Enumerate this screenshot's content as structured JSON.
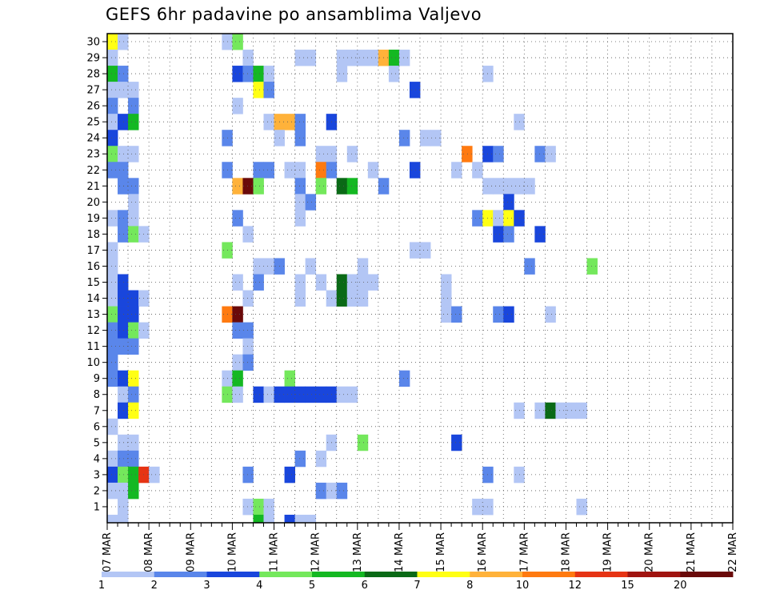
{
  "chart_data": {
    "type": "heatmap",
    "title": "GEFS 6hr padavine po ansamblima Valjevo",
    "xlabel": "",
    "ylabel": "",
    "y_ticks": [
      "1",
      "2",
      "3",
      "4",
      "5",
      "6",
      "7",
      "8",
      "9",
      "10",
      "11",
      "12",
      "13",
      "14",
      "15",
      "16",
      "17",
      "18",
      "19",
      "20",
      "21",
      "22",
      "23",
      "24",
      "25",
      "26",
      "27",
      "28",
      "29",
      "30"
    ],
    "ylim": [
      0,
      30
    ],
    "x_ticks": [
      "07 MAR",
      "08 MAR",
      "09 MAR",
      "10 MAR",
      "11 MAR",
      "12 MAR",
      "13 MAR",
      "14 MAR",
      "15 MAR",
      "16 MAR",
      "17 MAR",
      "18 MAR",
      "19 MAR",
      "20 MAR",
      "21 MAR",
      "22 MAR"
    ],
    "x_steps_per_day": 4,
    "grid": true,
    "colorbar": {
      "labels": [
        "1",
        "2",
        "3",
        "4",
        "5",
        "6",
        "7",
        "8",
        "10",
        "12",
        "15",
        "20"
      ],
      "colors": [
        "#b3c6f5",
        "#5a86ea",
        "#1946dc",
        "#74e85c",
        "#14b822",
        "#0a6a16",
        "#ffff14",
        "#ffb23a",
        "#ff7a10",
        "#e63414",
        "#a01410",
        "#6a0a0a"
      ]
    },
    "cells": [
      [
        0,
        30,
        6
      ],
      [
        1,
        30,
        0
      ],
      [
        11,
        30,
        0
      ],
      [
        12,
        30,
        3
      ],
      [
        0,
        29,
        0
      ],
      [
        13,
        29,
        0
      ],
      [
        18,
        29,
        0
      ],
      [
        19,
        29,
        0
      ],
      [
        22,
        29,
        0
      ],
      [
        23,
        29,
        0
      ],
      [
        24,
        29,
        0
      ],
      [
        25,
        29,
        0
      ],
      [
        26,
        29,
        7
      ],
      [
        27,
        29,
        4
      ],
      [
        28,
        29,
        0
      ],
      [
        0,
        28,
        4
      ],
      [
        1,
        28,
        1
      ],
      [
        12,
        28,
        2
      ],
      [
        13,
        28,
        1
      ],
      [
        14,
        28,
        4
      ],
      [
        15,
        28,
        0
      ],
      [
        22,
        28,
        0
      ],
      [
        27,
        28,
        0
      ],
      [
        36,
        28,
        0
      ],
      [
        0,
        27,
        0
      ],
      [
        1,
        27,
        0
      ],
      [
        2,
        27,
        0
      ],
      [
        14,
        27,
        6
      ],
      [
        15,
        27,
        1
      ],
      [
        29,
        27,
        2
      ],
      [
        0,
        26,
        1
      ],
      [
        2,
        26,
        1
      ],
      [
        12,
        26,
        0
      ],
      [
        0,
        25,
        0
      ],
      [
        1,
        25,
        2
      ],
      [
        2,
        25,
        4
      ],
      [
        15,
        25,
        0
      ],
      [
        16,
        25,
        7
      ],
      [
        17,
        25,
        7
      ],
      [
        18,
        25,
        1
      ],
      [
        21,
        25,
        2
      ],
      [
        39,
        25,
        0
      ],
      [
        0,
        24,
        2
      ],
      [
        11,
        24,
        1
      ],
      [
        16,
        24,
        0
      ],
      [
        18,
        24,
        1
      ],
      [
        28,
        24,
        1
      ],
      [
        30,
        24,
        0
      ],
      [
        31,
        24,
        0
      ],
      [
        0,
        23,
        3
      ],
      [
        1,
        23,
        0
      ],
      [
        2,
        23,
        0
      ],
      [
        20,
        23,
        0
      ],
      [
        21,
        23,
        0
      ],
      [
        23,
        23,
        0
      ],
      [
        34,
        23,
        8
      ],
      [
        36,
        23,
        2
      ],
      [
        37,
        23,
        1
      ],
      [
        41,
        23,
        1
      ],
      [
        42,
        23,
        0
      ],
      [
        0,
        22,
        1
      ],
      [
        1,
        22,
        1
      ],
      [
        11,
        22,
        1
      ],
      [
        14,
        22,
        1
      ],
      [
        15,
        22,
        1
      ],
      [
        17,
        22,
        0
      ],
      [
        18,
        22,
        0
      ],
      [
        20,
        22,
        8
      ],
      [
        21,
        22,
        1
      ],
      [
        25,
        22,
        0
      ],
      [
        29,
        22,
        2
      ],
      [
        33,
        22,
        0
      ],
      [
        35,
        22,
        0
      ],
      [
        1,
        21,
        1
      ],
      [
        2,
        21,
        1
      ],
      [
        12,
        21,
        7
      ],
      [
        13,
        21,
        11
      ],
      [
        14,
        21,
        3
      ],
      [
        18,
        21,
        1
      ],
      [
        20,
        21,
        3
      ],
      [
        22,
        21,
        5
      ],
      [
        23,
        21,
        4
      ],
      [
        26,
        21,
        1
      ],
      [
        36,
        21,
        0
      ],
      [
        37,
        21,
        0
      ],
      [
        38,
        21,
        0
      ],
      [
        39,
        21,
        0
      ],
      [
        40,
        21,
        0
      ],
      [
        2,
        20,
        0
      ],
      [
        18,
        20,
        0
      ],
      [
        19,
        20,
        1
      ],
      [
        38,
        20,
        2
      ],
      [
        0,
        19,
        0
      ],
      [
        1,
        19,
        1
      ],
      [
        2,
        19,
        0
      ],
      [
        18,
        19,
        0
      ],
      [
        12,
        19,
        1
      ],
      [
        35,
        19,
        1
      ],
      [
        36,
        19,
        6
      ],
      [
        37,
        19,
        0
      ],
      [
        38,
        19,
        6
      ],
      [
        39,
        19,
        2
      ],
      [
        1,
        18,
        1
      ],
      [
        2,
        18,
        3
      ],
      [
        3,
        18,
        0
      ],
      [
        13,
        18,
        0
      ],
      [
        37,
        18,
        2
      ],
      [
        38,
        18,
        1
      ],
      [
        41,
        18,
        2
      ],
      [
        0,
        17,
        0
      ],
      [
        11,
        17,
        3
      ],
      [
        29,
        17,
        0
      ],
      [
        30,
        17,
        0
      ],
      [
        0,
        16,
        0
      ],
      [
        14,
        16,
        0
      ],
      [
        15,
        16,
        0
      ],
      [
        16,
        16,
        1
      ],
      [
        19,
        16,
        0
      ],
      [
        24,
        16,
        0
      ],
      [
        40,
        16,
        1
      ],
      [
        46,
        16,
        3
      ],
      [
        0,
        15,
        0
      ],
      [
        1,
        15,
        2
      ],
      [
        12,
        15,
        0
      ],
      [
        14,
        15,
        1
      ],
      [
        18,
        15,
        0
      ],
      [
        20,
        15,
        0
      ],
      [
        22,
        15,
        5
      ],
      [
        23,
        15,
        0
      ],
      [
        24,
        15,
        0
      ],
      [
        25,
        15,
        0
      ],
      [
        32,
        15,
        0
      ],
      [
        0,
        14,
        0
      ],
      [
        1,
        14,
        2
      ],
      [
        2,
        14,
        2
      ],
      [
        3,
        14,
        0
      ],
      [
        13,
        14,
        0
      ],
      [
        18,
        14,
        0
      ],
      [
        21,
        14,
        0
      ],
      [
        22,
        14,
        5
      ],
      [
        23,
        14,
        0
      ],
      [
        24,
        14,
        0
      ],
      [
        32,
        14,
        0
      ],
      [
        0,
        13,
        3
      ],
      [
        1,
        13,
        2
      ],
      [
        2,
        13,
        2
      ],
      [
        11,
        13,
        8
      ],
      [
        12,
        13,
        11
      ],
      [
        32,
        13,
        0
      ],
      [
        33,
        13,
        1
      ],
      [
        37,
        13,
        1
      ],
      [
        38,
        13,
        2
      ],
      [
        42,
        13,
        0
      ],
      [
        0,
        12,
        1
      ],
      [
        1,
        12,
        2
      ],
      [
        2,
        12,
        3
      ],
      [
        3,
        12,
        0
      ],
      [
        12,
        12,
        1
      ],
      [
        13,
        12,
        1
      ],
      [
        0,
        11,
        1
      ],
      [
        1,
        11,
        1
      ],
      [
        2,
        11,
        1
      ],
      [
        13,
        11,
        0
      ],
      [
        0,
        10,
        1
      ],
      [
        12,
        10,
        0
      ],
      [
        13,
        10,
        1
      ],
      [
        0,
        9,
        1
      ],
      [
        1,
        9,
        2
      ],
      [
        2,
        9,
        6
      ],
      [
        11,
        9,
        0
      ],
      [
        12,
        9,
        4
      ],
      [
        17,
        9,
        3
      ],
      [
        28,
        9,
        1
      ],
      [
        1,
        8,
        0
      ],
      [
        2,
        8,
        1
      ],
      [
        11,
        8,
        3
      ],
      [
        12,
        8,
        0
      ],
      [
        14,
        8,
        2
      ],
      [
        15,
        8,
        0
      ],
      [
        16,
        8,
        2
      ],
      [
        17,
        8,
        2
      ],
      [
        18,
        8,
        2
      ],
      [
        19,
        8,
        2
      ],
      [
        20,
        8,
        2
      ],
      [
        21,
        8,
        2
      ],
      [
        22,
        8,
        0
      ],
      [
        23,
        8,
        0
      ],
      [
        1,
        7,
        2
      ],
      [
        2,
        7,
        6
      ],
      [
        39,
        7,
        0
      ],
      [
        41,
        7,
        0
      ],
      [
        42,
        7,
        5
      ],
      [
        43,
        7,
        0
      ],
      [
        44,
        7,
        0
      ],
      [
        45,
        7,
        0
      ],
      [
        0,
        6,
        0
      ],
      [
        1,
        5,
        0
      ],
      [
        2,
        5,
        0
      ],
      [
        21,
        5,
        0
      ],
      [
        24,
        5,
        3
      ],
      [
        33,
        5,
        2
      ],
      [
        0,
        4,
        0
      ],
      [
        1,
        4,
        1
      ],
      [
        2,
        4,
        1
      ],
      [
        18,
        4,
        1
      ],
      [
        20,
        4,
        0
      ],
      [
        0,
        3,
        2
      ],
      [
        1,
        3,
        3
      ],
      [
        2,
        3,
        4
      ],
      [
        3,
        3,
        9
      ],
      [
        4,
        3,
        0
      ],
      [
        13,
        3,
        1
      ],
      [
        17,
        3,
        2
      ],
      [
        36,
        3,
        1
      ],
      [
        39,
        3,
        0
      ],
      [
        0,
        2,
        0
      ],
      [
        1,
        2,
        0
      ],
      [
        2,
        2,
        4
      ],
      [
        20,
        2,
        1
      ],
      [
        21,
        2,
        0
      ],
      [
        22,
        2,
        1
      ],
      [
        1,
        1,
        0
      ],
      [
        13,
        1,
        0
      ],
      [
        14,
        1,
        3
      ],
      [
        15,
        1,
        0
      ],
      [
        35,
        1,
        0
      ],
      [
        36,
        1,
        0
      ],
      [
        45,
        1,
        0
      ],
      [
        0,
        0,
        0
      ],
      [
        1,
        0,
        0
      ],
      [
        14,
        0,
        4
      ],
      [
        15,
        0,
        0
      ],
      [
        17,
        0,
        2
      ],
      [
        18,
        0,
        0
      ],
      [
        19,
        0,
        0
      ]
    ]
  }
}
